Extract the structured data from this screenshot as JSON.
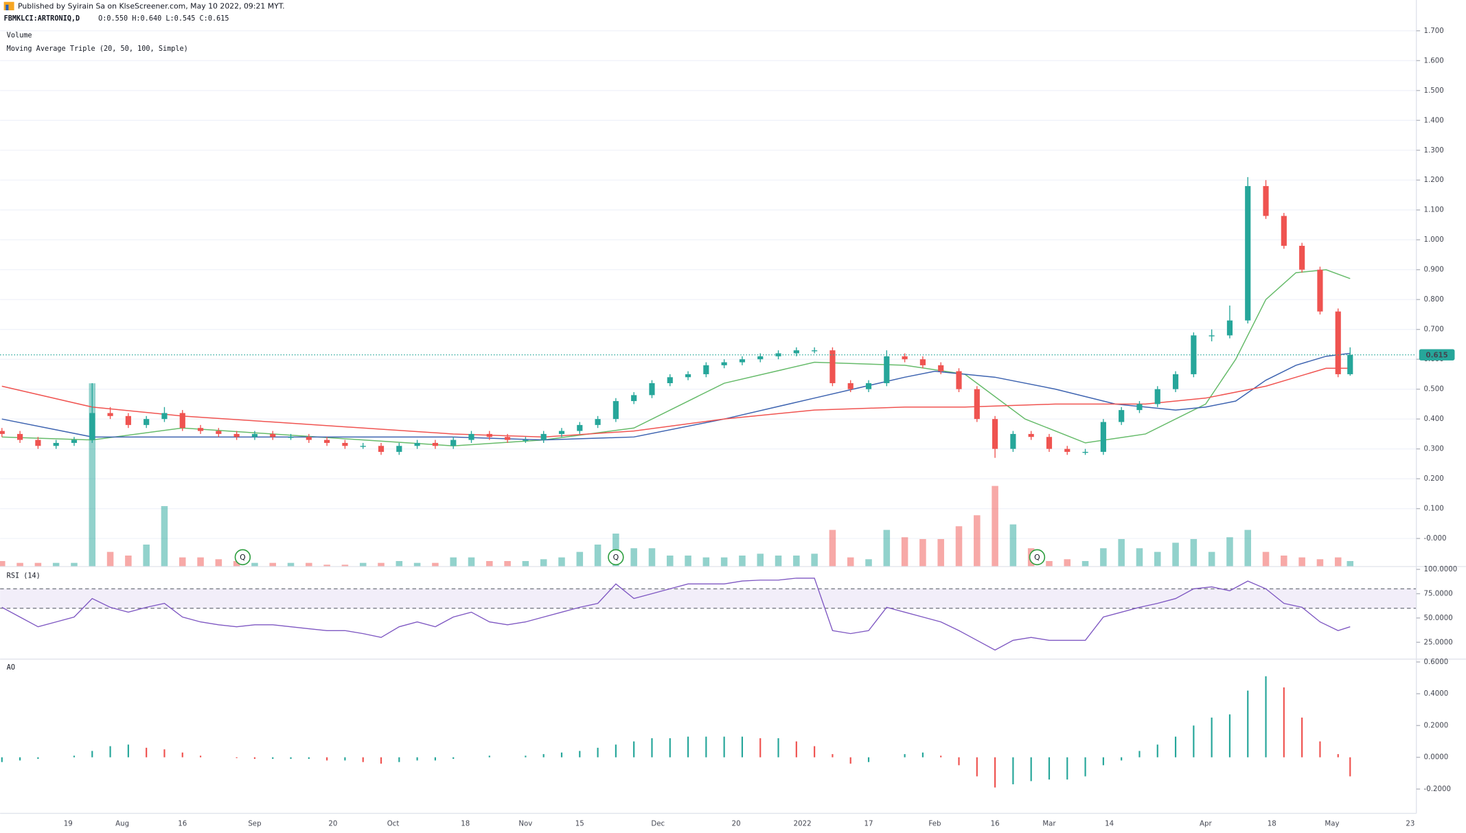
{
  "header": {
    "publisher": "Published by Syirain Sa on KlseScreener.com, May 10 2022, 09:21 MYT.",
    "symbol": "FBMKLCI:ARTRONIQ,D",
    "ohlc": "O:0.550 H:0.640 L:0.545 C:0.615"
  },
  "chart_data": [
    {
      "type": "candlestick",
      "volume_label": "Volume",
      "indicator_label": "Moving Average Triple (20, 50, 100, Simple)",
      "up_color": "#26a69a",
      "down_color": "#ef5350",
      "xlim": [
        -0.3,
        235
      ],
      "ylim": [
        -0.094,
        1.803
      ],
      "yticks": [
        {
          "value": 1.7,
          "label": "1.700"
        },
        {
          "value": 1.6,
          "label": "1.600"
        },
        {
          "value": 1.5,
          "label": "1.500"
        },
        {
          "value": 1.4,
          "label": "1.400"
        },
        {
          "value": 1.3,
          "label": "1.300"
        },
        {
          "value": 1.2,
          "label": "1.200"
        },
        {
          "value": 1.1,
          "label": "1.100"
        },
        {
          "value": 1.0,
          "label": "1.000"
        },
        {
          "value": 0.9,
          "label": "0.900"
        },
        {
          "value": 0.8,
          "label": "0.800"
        },
        {
          "value": 0.7,
          "label": "0.700"
        },
        {
          "value": 0.6,
          "label": "0.600"
        },
        {
          "value": 0.5,
          "label": "0.500"
        },
        {
          "value": 0.4,
          "label": "0.400"
        },
        {
          "value": 0.3,
          "label": "0.300"
        },
        {
          "value": 0.2,
          "label": "0.200"
        },
        {
          "value": 0.1,
          "label": "0.100"
        },
        {
          "value": 0,
          "label": "-0.000"
        }
      ],
      "last_price": {
        "value": 0.615,
        "label": "0.615"
      },
      "x": [
        0,
        3,
        6,
        9,
        12,
        15,
        18,
        21,
        24,
        27,
        30,
        33,
        36,
        39,
        42,
        45,
        48,
        51,
        54,
        57,
        60,
        63,
        66,
        69,
        72,
        75,
        78,
        81,
        84,
        87,
        90,
        93,
        96,
        99,
        102,
        105,
        108,
        111,
        114,
        117,
        120,
        123,
        126,
        129,
        132,
        135,
        138,
        141,
        144,
        147,
        150,
        153,
        156,
        159,
        162,
        165,
        168,
        171,
        174,
        177,
        180,
        183,
        186,
        189,
        192,
        195,
        198,
        201,
        204,
        207,
        210,
        213,
        216,
        219,
        222,
        224
      ],
      "open": [
        0.36,
        0.35,
        0.33,
        0.31,
        0.32,
        0.33,
        0.42,
        0.41,
        0.38,
        0.4,
        0.42,
        0.37,
        0.36,
        0.35,
        0.34,
        0.35,
        0.34,
        0.34,
        0.33,
        0.32,
        0.31,
        0.31,
        0.29,
        0.31,
        0.32,
        0.31,
        0.33,
        0.35,
        0.34,
        0.33,
        0.33,
        0.35,
        0.36,
        0.38,
        0.4,
        0.46,
        0.48,
        0.52,
        0.54,
        0.55,
        0.58,
        0.59,
        0.6,
        0.61,
        0.62,
        0.63,
        0.63,
        0.52,
        0.5,
        0.52,
        0.61,
        0.6,
        0.58,
        0.56,
        0.5,
        0.4,
        0.3,
        0.35,
        0.34,
        0.3,
        0.29,
        0.29,
        0.39,
        0.43,
        0.45,
        0.5,
        0.55,
        0.68,
        0.68,
        0.73,
        1.18,
        1.08,
        0.98,
        0.9,
        0.76,
        0.55
      ],
      "high": [
        0.37,
        0.36,
        0.34,
        0.33,
        0.34,
        0.52,
        0.44,
        0.42,
        0.41,
        0.44,
        0.43,
        0.38,
        0.37,
        0.36,
        0.36,
        0.36,
        0.35,
        0.35,
        0.34,
        0.33,
        0.32,
        0.32,
        0.32,
        0.33,
        0.33,
        0.34,
        0.36,
        0.36,
        0.35,
        0.34,
        0.36,
        0.37,
        0.39,
        0.41,
        0.47,
        0.49,
        0.53,
        0.55,
        0.56,
        0.59,
        0.6,
        0.61,
        0.62,
        0.63,
        0.64,
        0.64,
        0.64,
        0.53,
        0.53,
        0.63,
        0.62,
        0.61,
        0.59,
        0.57,
        0.51,
        0.41,
        0.36,
        0.36,
        0.35,
        0.31,
        0.3,
        0.4,
        0.44,
        0.46,
        0.51,
        0.56,
        0.69,
        0.7,
        0.78,
        1.21,
        1.2,
        1.09,
        0.99,
        0.91,
        0.77,
        0.64
      ],
      "low": [
        0.34,
        0.32,
        0.3,
        0.3,
        0.31,
        0.32,
        0.4,
        0.37,
        0.37,
        0.39,
        0.36,
        0.35,
        0.34,
        0.33,
        0.33,
        0.33,
        0.33,
        0.32,
        0.31,
        0.3,
        0.3,
        0.28,
        0.28,
        0.3,
        0.3,
        0.3,
        0.32,
        0.33,
        0.32,
        0.32,
        0.32,
        0.34,
        0.35,
        0.37,
        0.39,
        0.45,
        0.47,
        0.51,
        0.53,
        0.54,
        0.57,
        0.58,
        0.59,
        0.6,
        0.61,
        0.62,
        0.51,
        0.49,
        0.49,
        0.51,
        0.59,
        0.57,
        0.55,
        0.49,
        0.39,
        0.27,
        0.29,
        0.33,
        0.29,
        0.28,
        0.28,
        0.28,
        0.38,
        0.42,
        0.44,
        0.49,
        0.54,
        0.66,
        0.67,
        0.72,
        1.07,
        0.97,
        0.89,
        0.75,
        0.54,
        0.545
      ],
      "close": [
        0.35,
        0.33,
        0.31,
        0.32,
        0.33,
        0.42,
        0.41,
        0.38,
        0.4,
        0.42,
        0.37,
        0.36,
        0.35,
        0.34,
        0.35,
        0.34,
        0.34,
        0.33,
        0.32,
        0.31,
        0.31,
        0.29,
        0.31,
        0.32,
        0.31,
        0.33,
        0.35,
        0.34,
        0.33,
        0.33,
        0.35,
        0.36,
        0.38,
        0.4,
        0.46,
        0.48,
        0.52,
        0.54,
        0.55,
        0.58,
        0.59,
        0.6,
        0.61,
        0.62,
        0.63,
        0.63,
        0.52,
        0.5,
        0.52,
        0.61,
        0.6,
        0.58,
        0.56,
        0.5,
        0.4,
        0.3,
        0.35,
        0.34,
        0.3,
        0.29,
        0.29,
        0.39,
        0.43,
        0.45,
        0.5,
        0.55,
        0.68,
        0.68,
        0.73,
        1.18,
        1.08,
        0.98,
        0.9,
        0.76,
        0.55,
        0.615
      ],
      "volume": [
        3,
        2,
        2,
        2,
        2,
        100,
        8,
        6,
        12,
        33,
        5,
        5,
        4,
        3,
        2,
        2,
        2,
        2,
        1,
        1,
        2,
        2,
        3,
        2,
        2,
        5,
        5,
        3,
        3,
        3,
        4,
        5,
        8,
        12,
        18,
        10,
        10,
        6,
        6,
        5,
        5,
        6,
        7,
        6,
        6,
        7,
        20,
        5,
        4,
        20,
        16,
        15,
        15,
        22,
        28,
        44,
        23,
        10,
        3,
        4,
        3,
        10,
        15,
        10,
        8,
        13,
        15,
        8,
        16,
        20,
        8,
        6,
        5,
        4,
        5,
        3
      ],
      "ma": [
        {
          "color": "#66bb6a",
          "x": [
            0,
            15,
            30,
            45,
            60,
            75,
            90,
            105,
            120,
            135,
            150,
            160,
            170,
            180,
            190,
            200,
            205,
            210,
            215,
            220,
            224
          ],
          "values": [
            0.34,
            0.33,
            0.37,
            0.35,
            0.33,
            0.31,
            0.33,
            0.37,
            0.52,
            0.59,
            0.58,
            0.55,
            0.4,
            0.32,
            0.35,
            0.45,
            0.6,
            0.8,
            0.89,
            0.9,
            0.87
          ]
        },
        {
          "color": "#3d63b0",
          "x": [
            0,
            15,
            45,
            75,
            90,
            105,
            120,
            135,
            150,
            155,
            165,
            175,
            185,
            195,
            200,
            205,
            210,
            215,
            220,
            224
          ],
          "values": [
            0.4,
            0.34,
            0.34,
            0.34,
            0.33,
            0.34,
            0.4,
            0.47,
            0.54,
            0.56,
            0.54,
            0.5,
            0.45,
            0.43,
            0.44,
            0.46,
            0.53,
            0.58,
            0.61,
            0.62
          ]
        },
        {
          "color": "#f05350",
          "x": [
            0,
            15,
            30,
            45,
            60,
            75,
            90,
            105,
            120,
            135,
            150,
            160,
            175,
            190,
            200,
            210,
            215,
            220,
            224
          ],
          "values": [
            0.51,
            0.44,
            0.41,
            0.39,
            0.37,
            0.35,
            0.34,
            0.36,
            0.4,
            0.43,
            0.44,
            0.44,
            0.45,
            0.45,
            0.47,
            0.51,
            0.54,
            0.57,
            0.57
          ]
        }
      ],
      "events": [
        {
          "x": 40,
          "label": "Q"
        },
        {
          "x": 102,
          "label": "Q"
        },
        {
          "x": 172,
          "label": "Q"
        }
      ],
      "grid": true
    },
    {
      "type": "line",
      "title": "RSI (14)",
      "color": "#7e57c2",
      "xlim": [
        -0.3,
        235
      ],
      "ylim": [
        7.7,
        102.9
      ],
      "yticks": [
        {
          "value": 100,
          "label": "100.0000"
        },
        {
          "value": 75,
          "label": "75.0000"
        },
        {
          "value": 50,
          "label": "50.0000"
        },
        {
          "value": 25,
          "label": "25.0000"
        }
      ],
      "bands": [
        60,
        80
      ],
      "x": [
        0,
        3,
        6,
        9,
        12,
        15,
        18,
        21,
        24,
        27,
        30,
        33,
        36,
        39,
        42,
        45,
        48,
        51,
        54,
        57,
        60,
        63,
        66,
        69,
        72,
        75,
        78,
        81,
        84,
        87,
        90,
        93,
        96,
        99,
        102,
        105,
        108,
        111,
        114,
        117,
        120,
        123,
        126,
        129,
        132,
        135,
        138,
        141,
        144,
        147,
        150,
        153,
        156,
        159,
        162,
        165,
        168,
        171,
        174,
        177,
        180,
        183,
        186,
        189,
        192,
        195,
        198,
        201,
        204,
        207,
        210,
        213,
        216,
        219,
        222,
        224
      ],
      "values": [
        61,
        51,
        41,
        46,
        51,
        70,
        61,
        56,
        61,
        65,
        51,
        46,
        43,
        41,
        43,
        43,
        41,
        39,
        37,
        37,
        34,
        30,
        41,
        46,
        41,
        51,
        56,
        46,
        43,
        46,
        51,
        56,
        61,
        65,
        85,
        70,
        75,
        80,
        85,
        85,
        85,
        88,
        89,
        89,
        91,
        91,
        37,
        34,
        37,
        61,
        56,
        51,
        46,
        37,
        27,
        17,
        27,
        30,
        27,
        27,
        27,
        51,
        56,
        61,
        65,
        70,
        80,
        82,
        78,
        88,
        80,
        65,
        61,
        46,
        37,
        41
      ]
    },
    {
      "type": "histogram",
      "title": "AO",
      "up_color": "#26a69a",
      "down_color": "#ef5350",
      "xlim": [
        -0.3,
        235
      ],
      "ylim": [
        -0.353,
        0.618
      ],
      "yticks": [
        {
          "value": 0.6,
          "label": "0.6000"
        },
        {
          "value": 0.4,
          "label": "0.4000"
        },
        {
          "value": 0.2,
          "label": "0.2000"
        },
        {
          "value": 0,
          "label": "0.0000"
        },
        {
          "value": -0.2,
          "label": "-0.2000"
        }
      ],
      "xticks": [
        {
          "value": 11,
          "label": "19"
        },
        {
          "value": 20,
          "label": "Aug"
        },
        {
          "value": 30,
          "label": "16"
        },
        {
          "value": 42,
          "label": "Sep"
        },
        {
          "value": 55,
          "label": "20"
        },
        {
          "value": 65,
          "label": "Oct"
        },
        {
          "value": 77,
          "label": "18"
        },
        {
          "value": 87,
          "label": "Nov"
        },
        {
          "value": 96,
          "label": "15"
        },
        {
          "value": 109,
          "label": "Dec"
        },
        {
          "value": 122,
          "label": "20"
        },
        {
          "value": 133,
          "label": "2022"
        },
        {
          "value": 144,
          "label": "17"
        },
        {
          "value": 155,
          "label": "Feb"
        },
        {
          "value": 165,
          "label": "16"
        },
        {
          "value": 174,
          "label": "Mar"
        },
        {
          "value": 184,
          "label": "14"
        },
        {
          "value": 200,
          "label": "Apr"
        },
        {
          "value": 211,
          "label": "18"
        },
        {
          "value": 221,
          "label": "May"
        },
        {
          "value": 234,
          "label": "23"
        }
      ],
      "x": [
        0,
        3,
        6,
        9,
        12,
        15,
        18,
        21,
        24,
        27,
        30,
        33,
        36,
        39,
        42,
        45,
        48,
        51,
        54,
        57,
        60,
        63,
        66,
        69,
        72,
        75,
        78,
        81,
        84,
        87,
        90,
        93,
        96,
        99,
        102,
        105,
        108,
        111,
        114,
        117,
        120,
        123,
        126,
        129,
        132,
        135,
        138,
        141,
        144,
        147,
        150,
        153,
        156,
        159,
        162,
        165,
        168,
        171,
        174,
        177,
        180,
        183,
        186,
        189,
        192,
        195,
        198,
        201,
        204,
        207,
        210,
        213,
        216,
        219,
        222,
        224
      ],
      "values": [
        -0.03,
        -0.02,
        -0.01,
        0,
        0.01,
        0.04,
        0.07,
        0.08,
        0.06,
        0.05,
        0.03,
        0.01,
        0,
        -0.005,
        -0.01,
        -0.01,
        -0.01,
        -0.01,
        -0.02,
        -0.02,
        -0.03,
        -0.04,
        -0.03,
        -0.02,
        -0.02,
        -0.01,
        0,
        0.01,
        0,
        0.01,
        0.02,
        0.03,
        0.04,
        0.06,
        0.08,
        0.1,
        0.12,
        0.12,
        0.13,
        0.13,
        0.13,
        0.13,
        0.12,
        0.12,
        0.1,
        0.07,
        0.02,
        -0.04,
        -0.03,
        0,
        0.02,
        0.03,
        0.01,
        -0.05,
        -0.12,
        -0.19,
        -0.17,
        -0.15,
        -0.14,
        -0.14,
        -0.12,
        -0.05,
        -0.02,
        0.04,
        0.08,
        0.13,
        0.2,
        0.25,
        0.27,
        0.42,
        0.51,
        0.44,
        0.25,
        0.1,
        0.02,
        -0.12
      ]
    }
  ]
}
